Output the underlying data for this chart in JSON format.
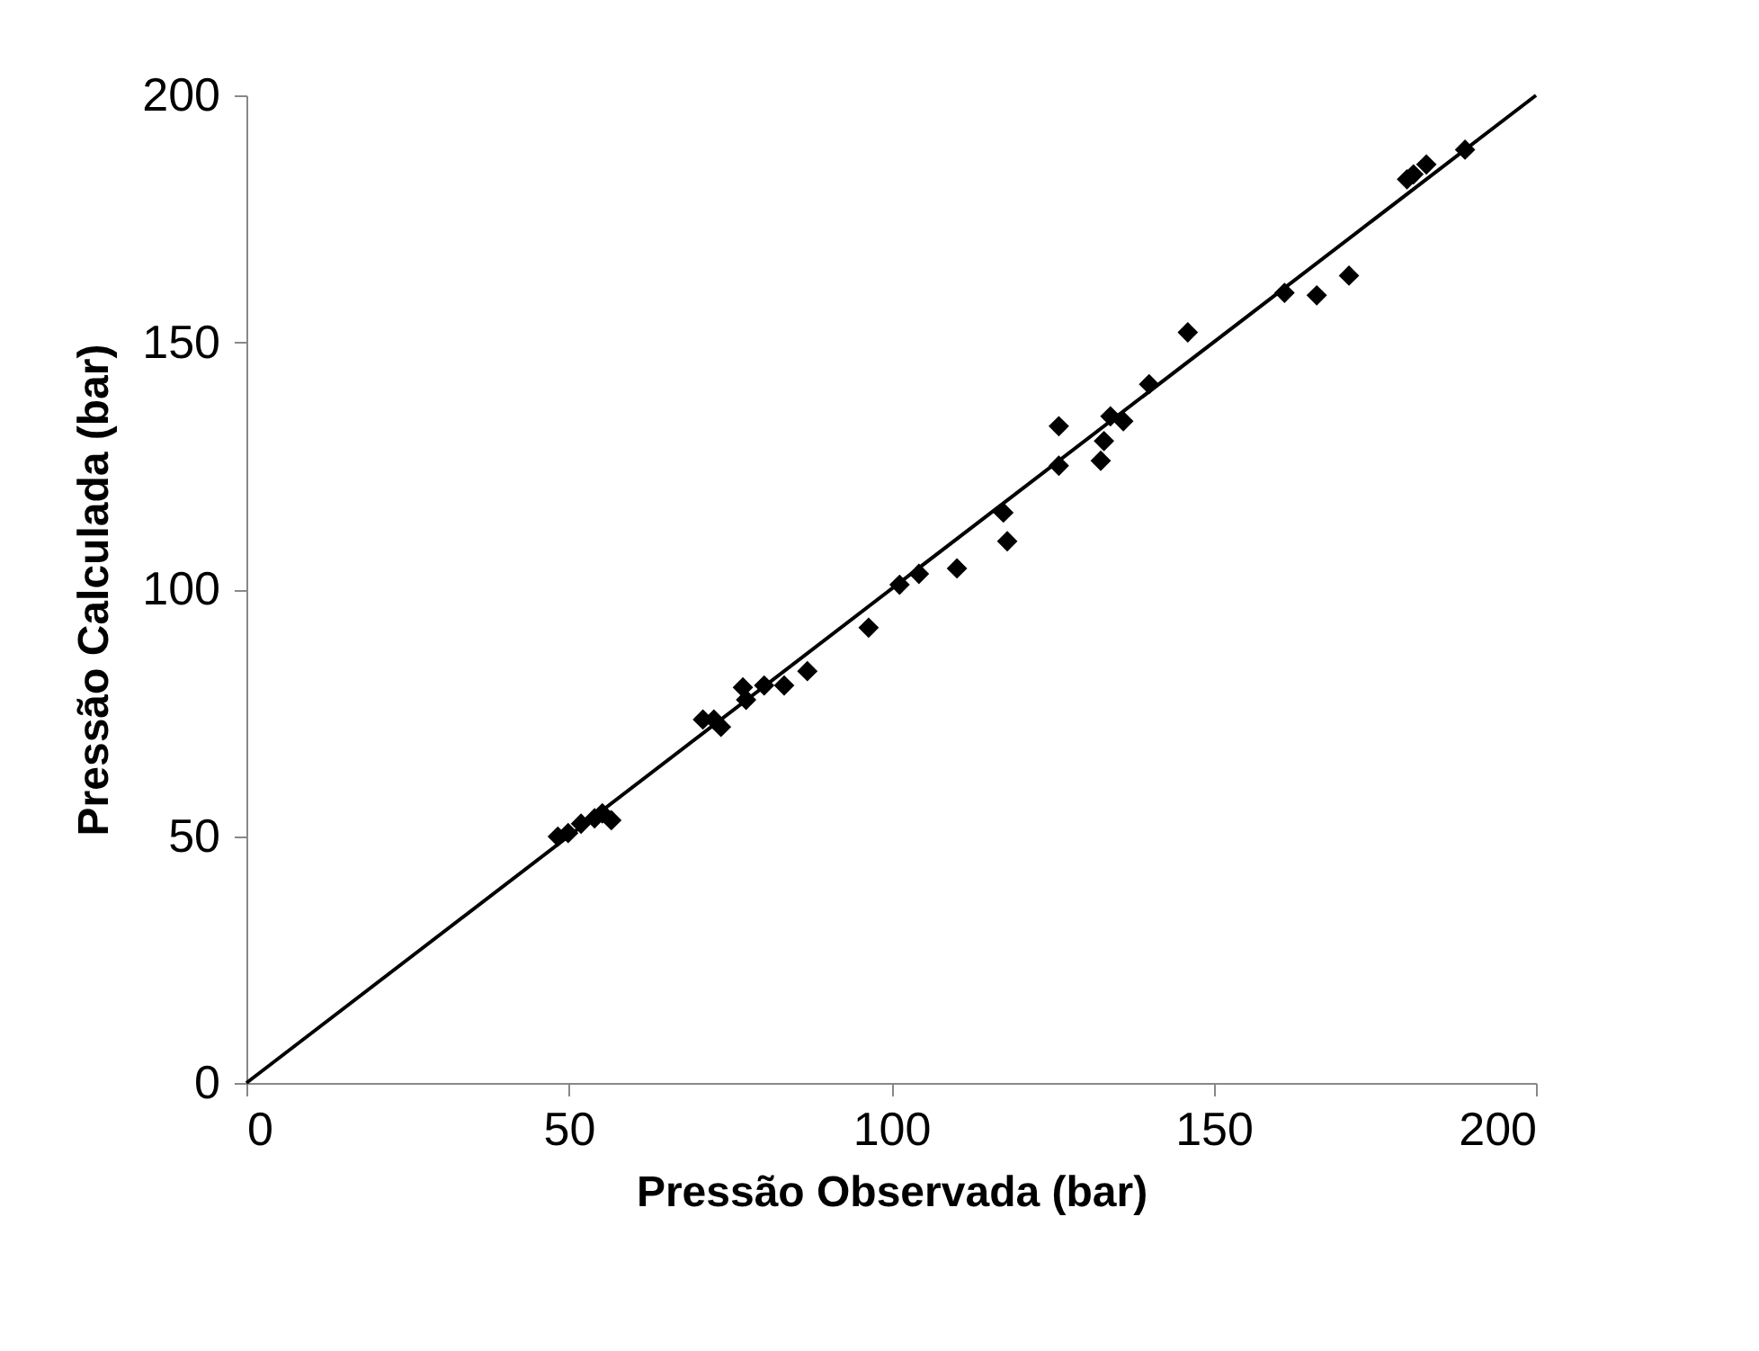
{
  "chart_data": {
    "type": "scatter",
    "xlabel": "Pressão Observada (bar)",
    "ylabel": "Pressão Calculada (bar)",
    "xlim": [
      0,
      200
    ],
    "ylim": [
      0,
      200
    ],
    "xticks": [
      0,
      50,
      100,
      150,
      200
    ],
    "yticks": [
      0,
      50,
      100,
      150,
      200
    ],
    "grid": false,
    "marker": "diamond",
    "series": [
      {
        "color": "#000000",
        "x": [
          48.3,
          49.9,
          51.9,
          54.0,
          55.2,
          56.6,
          70.8,
          72.5,
          73.6,
          77.0,
          77.5,
          80.3,
          83.4,
          87.0,
          96.5,
          101.3,
          104.3,
          110.2,
          117.4,
          118.0,
          126,
          126,
          132.5,
          133,
          134,
          136,
          140,
          146,
          161,
          166,
          171,
          180,
          181,
          183,
          189
        ],
        "values": [
          49.9,
          50.6,
          52.5,
          53.6,
          54.6,
          53.2,
          73.6,
          73.6,
          72.1,
          80.1,
          77.6,
          80.5,
          80.5,
          83.4,
          92.2,
          100.9,
          103.1,
          104.2,
          115.5,
          109.7,
          133,
          125,
          126,
          130,
          135,
          134,
          141.5,
          152,
          160,
          159.5,
          163.5,
          183,
          184,
          186,
          189
        ]
      },
      {
        "type": "line",
        "color": "#000000",
        "x": [
          0,
          200
        ],
        "values": [
          0,
          200
        ],
        "marker": "none",
        "line_style": "solid"
      }
    ]
  }
}
